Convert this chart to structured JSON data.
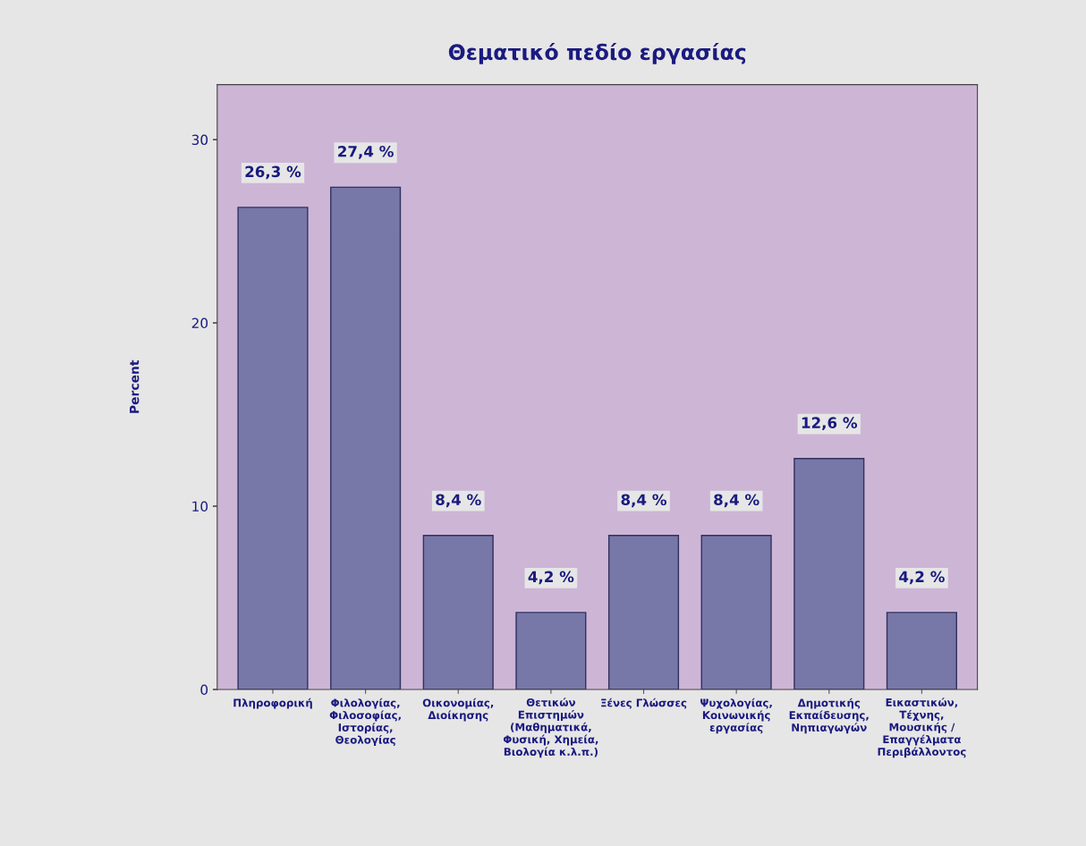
{
  "chart_data": {
    "type": "bar",
    "title": "Θεματικό πεδίο εργασίας",
    "ylabel": "Percent",
    "categories": [
      "Πληροφορική",
      "Φιλολογίας,\nΦιλοσοφίας,\nΙστορίας,\nΘεολογίας",
      "Οικονομίας,\nΔιοίκησης",
      "Θετικών\nΕπιστημών\n(Μαθηματικά,\nΦυσική, Χημεία,\nΒιολογία κ.λ.π.)",
      "Ξένες Γλώσσες",
      "Ψυχολογίας,\nΚοινωνικής\nεργασίας",
      "Δημοτικής\nΕκπαίδευσης,\nΝηπιαγωγών",
      "Εικαστικών,\nΤέχνης,\nΜουσικής /\nΕπαγγέλματα\nΠεριβάλλοντος"
    ],
    "values": [
      26.3,
      27.4,
      8.4,
      4.2,
      8.4,
      8.4,
      12.6,
      4.2
    ],
    "value_labels": [
      "26,3 %",
      "27,4 %",
      "8,4 %",
      "4,2 %",
      "8,4 %",
      "8,4 %",
      "12,6 %",
      "4,2 %"
    ],
    "color": "#7878a8",
    "ylim": [
      0,
      33
    ],
    "yticks": [
      0,
      10,
      20,
      30
    ],
    "grid": false
  }
}
